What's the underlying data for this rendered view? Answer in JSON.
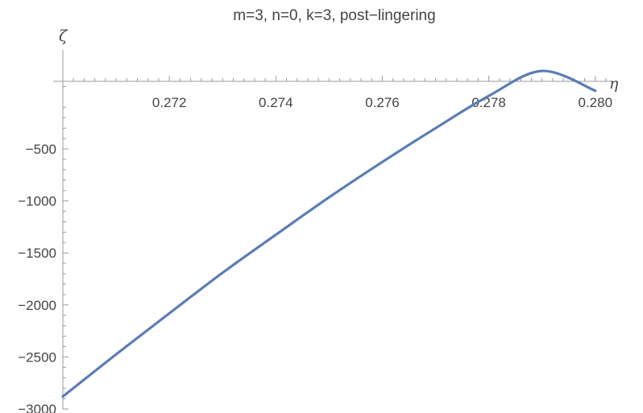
{
  "chart_data": {
    "type": "line",
    "title": "m=3, n=0, k=3, post−lingering",
    "xlabel": "η",
    "ylabel": "ζ",
    "xlim": [
      0.27,
      0.2802
    ],
    "ylim": [
      -3000,
      220
    ],
    "x_ticks": [
      0.272,
      0.274,
      0.276,
      0.278,
      0.28
    ],
    "x_tick_labels": [
      "0.272",
      "0.274",
      "0.276",
      "0.278",
      "0.280"
    ],
    "y_ticks": [
      -500,
      -1000,
      -1500,
      -2000,
      -2500,
      -3000
    ],
    "y_tick_labels": [
      "−500",
      "−1000",
      "−1500",
      "−2000",
      "−2500",
      "−3000"
    ],
    "grid": false,
    "series": [
      {
        "color": "#5b7db5",
        "x": [
          0.27,
          0.271,
          0.272,
          0.273,
          0.274,
          0.275,
          0.276,
          0.277,
          0.278,
          0.279,
          0.28
        ],
        "y": [
          -2880,
          -2475,
          -2080,
          -1690,
          -1325,
          -965,
          -625,
          -300,
          10,
          250,
          60
        ]
      }
    ]
  }
}
